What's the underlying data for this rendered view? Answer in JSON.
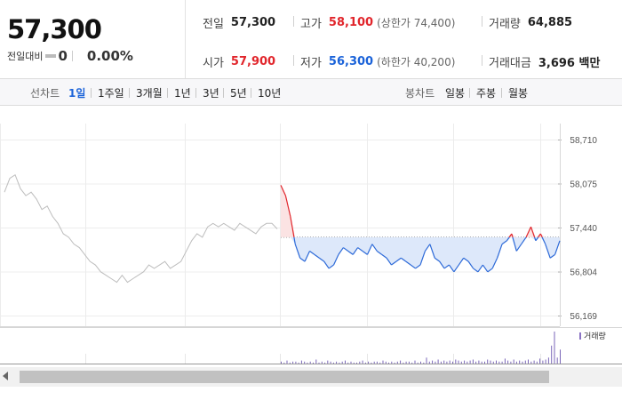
{
  "summary": {
    "price": "57,300",
    "change_label": "전일대비",
    "change_value": "0",
    "change_pct": "0.00%"
  },
  "stats": {
    "prev_close": {
      "label": "전일",
      "value": "57,300"
    },
    "high": {
      "label": "고가",
      "value": "58,100",
      "sub": "(상한가 74,400)"
    },
    "volume": {
      "label": "거래량",
      "value": "64,885"
    },
    "open": {
      "label": "시가",
      "value": "57,900"
    },
    "low": {
      "label": "저가",
      "value": "56,300",
      "sub": "(하한가 40,200)"
    },
    "amount": {
      "label": "거래대금",
      "value": "3,696 백만"
    }
  },
  "period_bar": {
    "line_chart_label": "선차트",
    "periods": [
      "1일",
      "1주일",
      "3개월",
      "1년",
      "3년",
      "5년",
      "10년"
    ],
    "active_period": "1일",
    "candle_chart_label": "봉차트",
    "candle_periods": [
      "일봉",
      "주봉",
      "월봉"
    ]
  },
  "chart_data": [
    {
      "type": "line",
      "description_series": [
        "prior session (grey)",
        "today (red above / blue below reference)"
      ],
      "yticks": [
        "58,710",
        "58,075",
        "57,440",
        "56,804",
        "56,169"
      ],
      "ylim": [
        56169,
        58710
      ],
      "reference_price": 57300,
      "prev_day_points": [
        57950,
        58150,
        58200,
        58000,
        57900,
        57950,
        57850,
        57700,
        57750,
        57600,
        57500,
        57350,
        57300,
        57200,
        57150,
        57050,
        56950,
        56900,
        56800,
        56750,
        56700,
        56650,
        56750,
        56650,
        56700,
        56750,
        56800,
        56900,
        56850,
        56900,
        56950,
        56850,
        56900,
        56950,
        57100,
        57250,
        57350,
        57300,
        57450,
        57500,
        57450,
        57500,
        57450,
        57400,
        57500,
        57450,
        57400,
        57350,
        57450,
        57500,
        57500,
        57420
      ],
      "today_points": [
        58050,
        57900,
        57600,
        57200,
        57000,
        56950,
        57100,
        57050,
        57000,
        56950,
        56850,
        56900,
        57050,
        57150,
        57100,
        57050,
        57150,
        57100,
        57050,
        57200,
        57100,
        57050,
        57000,
        56900,
        56950,
        57000,
        56950,
        56900,
        56850,
        56900,
        57100,
        57200,
        57000,
        56950,
        56850,
        56900,
        56800,
        56900,
        57000,
        56950,
        56850,
        56800,
        56900,
        56800,
        56850,
        57000,
        57200,
        57250,
        57350,
        57100,
        57200,
        57300,
        57450,
        57250,
        57350,
        57200,
        57000,
        57050,
        57250
      ],
      "labels": {
        "volume_legend": "거래량"
      }
    },
    {
      "type": "bar",
      "name": "거래량",
      "values": [
        2,
        1,
        3,
        1,
        2,
        2,
        1,
        3,
        2,
        1,
        2,
        1,
        4,
        1,
        2,
        1,
        3,
        2,
        1,
        2,
        1,
        2,
        3,
        1,
        2,
        1,
        1,
        2,
        3,
        1,
        2,
        1,
        2,
        2,
        1,
        3,
        2,
        1,
        2,
        1,
        2,
        3,
        1,
        2,
        2,
        1,
        3,
        1,
        2,
        1,
        6,
        2,
        3,
        2,
        4,
        2,
        3,
        2,
        3,
        2,
        4,
        3,
        2,
        3,
        2,
        3,
        4,
        2,
        3,
        2,
        2,
        4,
        3,
        2,
        3,
        2,
        2,
        5,
        3,
        2,
        4,
        2,
        3,
        2,
        3,
        4,
        2,
        3,
        2,
        5,
        3,
        4,
        6,
        18,
        32,
        6,
        14
      ]
    }
  ]
}
